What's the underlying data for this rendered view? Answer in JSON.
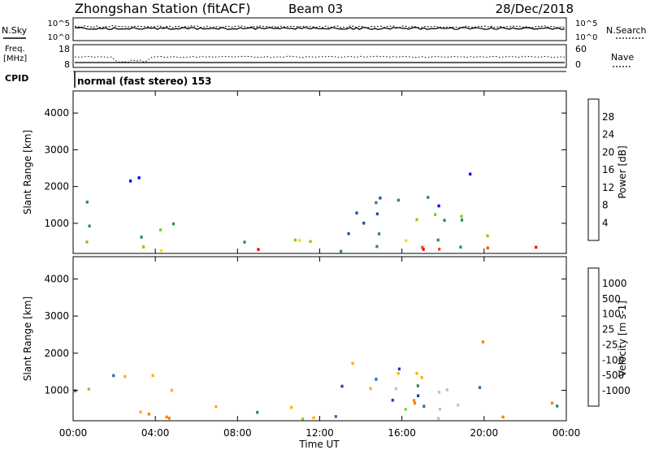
{
  "header": {
    "station": "Zhongshan Station (fitACF)",
    "beam": "Beam 03",
    "date": "28/Dec/2018",
    "cpid_label": "CPID",
    "cpid_value": "normal (fast stereo) 153"
  },
  "strip": {
    "nsky_label": "N.Sky",
    "nsearch_label": "N.Search",
    "freq_label_1": "Freq.",
    "freq_label_2": "[MHz]",
    "nave_label": "Nave",
    "noise_left_ticks": [
      "10^5",
      "10^0"
    ],
    "noise_right_ticks": [
      "10^5",
      "10^0"
    ],
    "freq_left_ticks": [
      "18",
      "8"
    ],
    "nave_right_ticks": [
      "60",
      "0"
    ]
  },
  "chart_data": [
    {
      "type": "heatmap",
      "title": "",
      "xlabel": "Time UT",
      "ylabel": "Slant Range [km]",
      "xticks": [
        "00:00",
        "04:00",
        "08:00",
        "12:00",
        "16:00",
        "20:00",
        "00:00"
      ],
      "x_range_hours": [
        0,
        24
      ],
      "yticks": [
        1000,
        2000,
        3000,
        4000
      ],
      "ylim": [
        180,
        4600
      ],
      "colorbar": {
        "label": "Power [dB]",
        "ticks": [
          "28",
          "24",
          "20",
          "16",
          "12",
          "8",
          "4"
        ],
        "colors": [
          "#ff0000",
          "#ff4500",
          "#ff8c00",
          "#ffd700",
          "#7fd000",
          "#2e8b57",
          "#1e4fa0",
          "#0000ff"
        ]
      }
    },
    {
      "type": "heatmap",
      "title": "",
      "xlabel": "Time UT",
      "ylabel": "Slant Range [km]",
      "xticks": [
        "00:00",
        "04:00",
        "08:00",
        "12:00",
        "16:00",
        "20:00",
        "00:00"
      ],
      "x_range_hours": [
        0,
        24
      ],
      "yticks": [
        1000,
        2000,
        3000,
        4000
      ],
      "ylim": [
        180,
        4600
      ],
      "colorbar": {
        "label": "Velocity [m s-1]",
        "ticks": [
          "1000",
          "500",
          "100",
          "25",
          "-25",
          "-100",
          "-500",
          "-1000"
        ],
        "colors": [
          "#1e3cc8",
          "#2f6ea8",
          "#2e8b57",
          "#7fd040",
          "#c0c0c0",
          "#ffb000",
          "#ff7f00",
          "#ff3000",
          "#ff0000"
        ]
      }
    }
  ]
}
